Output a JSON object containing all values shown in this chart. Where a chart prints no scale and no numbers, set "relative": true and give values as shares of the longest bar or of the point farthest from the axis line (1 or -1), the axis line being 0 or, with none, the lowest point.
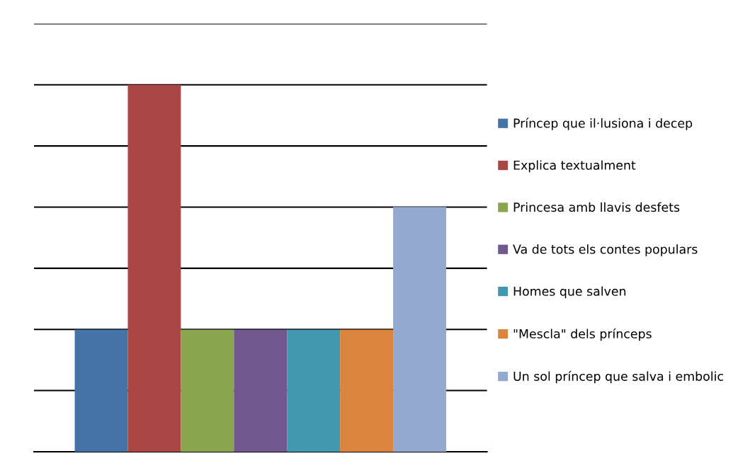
{
  "chart_data": {
    "type": "bar",
    "relative": true,
    "categories": [
      null
    ],
    "grid": "y",
    "legend": "right",
    "series": [
      {
        "name": "Príncep que il·lusiona i decep",
        "color": "#4572a7",
        "values": [
          0.333
        ]
      },
      {
        "name": "Explica textualment",
        "color": "#aa4643",
        "values": [
          1
        ]
      },
      {
        "name": "Princesa amb llavis desfets",
        "color": "#89a54e",
        "values": [
          0.333
        ]
      },
      {
        "name": "Va de tots els contes populars",
        "color": "#71588f",
        "values": [
          0.333
        ]
      },
      {
        "name": "Homes que salven",
        "color": "#4198af",
        "values": [
          0.333
        ]
      },
      {
        "name": "\"Mescla\" dels prínceps",
        "color": "#db843d",
        "values": [
          0.333
        ]
      },
      {
        "name": "Un sol príncep que salva i embolic",
        "color": "#93a9cf",
        "values": [
          0.667
        ]
      }
    ]
  }
}
